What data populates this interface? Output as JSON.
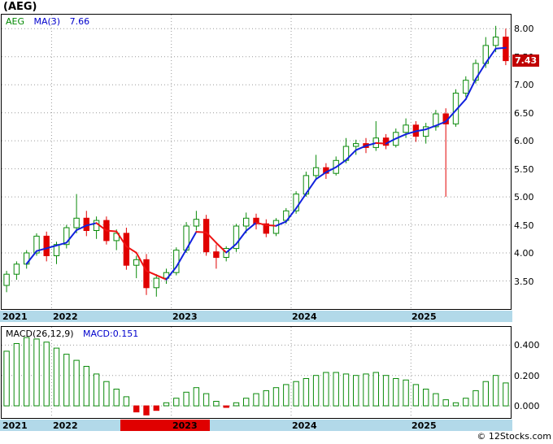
{
  "header": {
    "title": "(AEG)"
  },
  "main_chart": {
    "legend": {
      "symbol": "AEG",
      "ma_label": "MA(3)",
      "ma_value": "7.66"
    },
    "last_price_badge": "7.43"
  },
  "macd_chart": {
    "legend": {
      "label": "MACD(26,12,9)",
      "value": "MACD:0.151"
    }
  },
  "footer": {
    "credit": "© 12Stocks.com"
  },
  "colors": {
    "up": "#0a8a0a",
    "down": "#e00000",
    "ma_up": "#1122dd",
    "ma_down": "#ee1111",
    "grid": "#9a9a9a",
    "axis_band": "#b2d9e9",
    "badge_bg": "#c00000",
    "legend_blue": "#0000cc",
    "legend_green": "#008800"
  },
  "chart_data": [
    {
      "type": "candlestick",
      "title": "AEG monthly candlesticks with MA(3) overlay",
      "x": [
        "2021-08",
        "2021-09",
        "2021-10",
        "2021-11",
        "2021-12",
        "2022-01",
        "2022-02",
        "2022-03",
        "2022-04",
        "2022-05",
        "2022-06",
        "2022-07",
        "2022-08",
        "2022-09",
        "2022-10",
        "2022-11",
        "2022-12",
        "2023-01",
        "2023-02",
        "2023-03",
        "2023-04",
        "2023-05",
        "2023-06",
        "2023-07",
        "2023-08",
        "2023-09",
        "2023-10",
        "2023-11",
        "2023-12",
        "2024-01",
        "2024-02",
        "2024-03",
        "2024-04",
        "2024-05",
        "2024-06",
        "2024-07",
        "2024-08",
        "2024-09",
        "2024-10",
        "2024-11",
        "2024-12",
        "2025-01",
        "2025-02",
        "2025-03",
        "2025-04",
        "2025-05",
        "2025-06",
        "2025-07",
        "2025-08",
        "2025-09",
        "2025-10"
      ],
      "ohlc": [
        [
          3.42,
          3.68,
          3.3,
          3.62
        ],
        [
          3.62,
          3.85,
          3.52,
          3.8
        ],
        [
          3.8,
          4.05,
          3.72,
          4.0
        ],
        [
          4.0,
          4.35,
          3.95,
          4.3
        ],
        [
          4.3,
          4.38,
          3.85,
          3.95
        ],
        [
          3.95,
          4.2,
          3.8,
          4.15
        ],
        [
          4.15,
          4.5,
          4.08,
          4.45
        ],
        [
          4.45,
          5.05,
          4.35,
          4.62
        ],
        [
          4.62,
          4.75,
          4.3,
          4.4
        ],
        [
          4.4,
          4.65,
          4.25,
          4.58
        ],
        [
          4.58,
          4.65,
          4.15,
          4.22
        ],
        [
          4.22,
          4.42,
          4.05,
          4.35
        ],
        [
          4.35,
          4.45,
          3.7,
          3.78
        ],
        [
          3.78,
          3.95,
          3.55,
          3.88
        ],
        [
          3.88,
          3.98,
          3.25,
          3.38
        ],
        [
          3.38,
          3.62,
          3.22,
          3.55
        ],
        [
          3.55,
          3.72,
          3.45,
          3.65
        ],
        [
          3.65,
          4.1,
          3.6,
          4.05
        ],
        [
          4.05,
          4.55,
          4.0,
          4.48
        ],
        [
          4.48,
          4.75,
          4.4,
          4.6
        ],
        [
          4.6,
          4.68,
          3.95,
          4.02
        ],
        [
          4.02,
          4.15,
          3.72,
          3.92
        ],
        [
          3.92,
          4.12,
          3.85,
          4.08
        ],
        [
          4.08,
          4.52,
          4.02,
          4.48
        ],
        [
          4.48,
          4.72,
          4.35,
          4.62
        ],
        [
          4.62,
          4.7,
          4.42,
          4.52
        ],
        [
          4.52,
          4.6,
          4.28,
          4.35
        ],
        [
          4.35,
          4.62,
          4.3,
          4.58
        ],
        [
          4.58,
          4.8,
          4.52,
          4.75
        ],
        [
          4.75,
          5.1,
          4.7,
          5.05
        ],
        [
          5.05,
          5.45,
          5.0,
          5.38
        ],
        [
          5.38,
          5.75,
          5.3,
          5.52
        ],
        [
          5.52,
          5.6,
          5.32,
          5.42
        ],
        [
          5.42,
          5.72,
          5.38,
          5.65
        ],
        [
          5.65,
          6.05,
          5.6,
          5.9
        ],
        [
          5.9,
          6.02,
          5.75,
          5.95
        ],
        [
          5.95,
          6.05,
          5.78,
          5.88
        ],
        [
          5.88,
          6.35,
          5.82,
          6.05
        ],
        [
          6.05,
          6.12,
          5.85,
          5.92
        ],
        [
          5.92,
          6.22,
          5.88,
          6.15
        ],
        [
          6.15,
          6.4,
          6.05,
          6.28
        ],
        [
          6.28,
          6.35,
          5.98,
          6.08
        ],
        [
          6.08,
          6.32,
          5.95,
          6.25
        ],
        [
          6.25,
          6.55,
          6.18,
          6.48
        ],
        [
          6.48,
          6.58,
          5.0,
          6.3
        ],
        [
          6.3,
          6.92,
          6.25,
          6.85
        ],
        [
          6.85,
          7.15,
          6.78,
          7.08
        ],
        [
          7.08,
          7.45,
          7.02,
          7.38
        ],
        [
          7.38,
          7.85,
          7.3,
          7.7
        ],
        [
          7.7,
          8.05,
          7.58,
          7.85
        ],
        [
          7.85,
          8.0,
          7.35,
          7.43
        ]
      ],
      "ylim": [
        3.0,
        8.25
      ],
      "yticks": [
        "8.00",
        "7.50",
        "7.00",
        "6.50",
        "6.00",
        "5.50",
        "5.00",
        "4.50",
        "4.00",
        "3.50"
      ],
      "x_year_labels": [
        {
          "label": "2021",
          "index": 0
        },
        {
          "label": "2022",
          "index": 5
        },
        {
          "label": "2023",
          "index": 17
        },
        {
          "label": "2024",
          "index": 29
        },
        {
          "label": "2025",
          "index": 41
        }
      ],
      "overlay": {
        "name": "MA(3)",
        "period": 3,
        "last_value": 7.66
      },
      "last_price": 7.43,
      "grid": true,
      "legend_position": "top-left"
    },
    {
      "type": "bar",
      "title": "MACD(26,12,9)",
      "values": [
        0.36,
        0.41,
        0.45,
        0.44,
        0.42,
        0.38,
        0.34,
        0.3,
        0.26,
        0.21,
        0.16,
        0.11,
        0.06,
        -0.04,
        -0.06,
        -0.03,
        0.02,
        0.05,
        0.09,
        0.12,
        0.08,
        0.03,
        -0.01,
        0.02,
        0.05,
        0.08,
        0.1,
        0.12,
        0.14,
        0.16,
        0.18,
        0.2,
        0.22,
        0.22,
        0.21,
        0.2,
        0.21,
        0.22,
        0.2,
        0.18,
        0.17,
        0.14,
        0.11,
        0.08,
        0.04,
        0.02,
        0.05,
        0.1,
        0.16,
        0.2,
        0.151
      ],
      "ylim": [
        -0.08,
        0.52
      ],
      "yticks": [
        "0.400",
        "0.200",
        "0.000"
      ],
      "last_value": 0.151,
      "axis_highlight": {
        "start_index": 12,
        "end_index": 20
      },
      "grid": true
    }
  ]
}
